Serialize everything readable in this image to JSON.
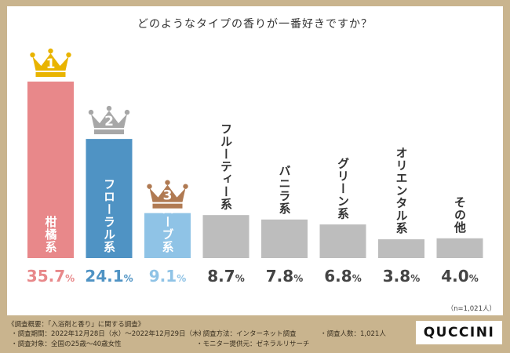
{
  "chart_data": {
    "type": "bar",
    "title": "どのようなタイプの香りが一番好きですか？",
    "categories": [
      "柑橘系",
      "フローラル系",
      "ハーブ系",
      "フルーティー系",
      "バニラ系",
      "グリーン系",
      "オリエンタル系",
      "その他"
    ],
    "values": [
      35.7,
      24.1,
      9.1,
      8.7,
      7.8,
      6.8,
      3.8,
      4.0
    ],
    "value_labels": [
      "35.7%",
      "24.1%",
      "9.1%",
      "8.7%",
      "7.8%",
      "6.8%",
      "3.8%",
      "4.0%"
    ],
    "ranks": [
      "1",
      "2",
      "3"
    ],
    "unit": "%",
    "ylim": [
      0,
      35.7
    ],
    "note": "（n=1,021人）",
    "colors": {
      "first": "#e8888a",
      "second": "#4f93c4",
      "third": "#8fc3e6",
      "other": "#bdbdbd",
      "gold": "#e9b400",
      "silver": "#a7a7a7",
      "bronze": "#b07a52"
    }
  },
  "footer": {
    "summary": "《調査概要：「入浴剤と香り」に関する調査》",
    "period": "・調査期間：2022年12月28日（水）～2022年12月29日（木）",
    "method": "・調査方法：インターネット調査",
    "count": "・調査人数：1,021人",
    "target": "・調査対象：全国の25歳～40歳女性",
    "monitor": "・モニター提供元：ゼネラルリサーチ",
    "logo": "QUCCINI"
  }
}
